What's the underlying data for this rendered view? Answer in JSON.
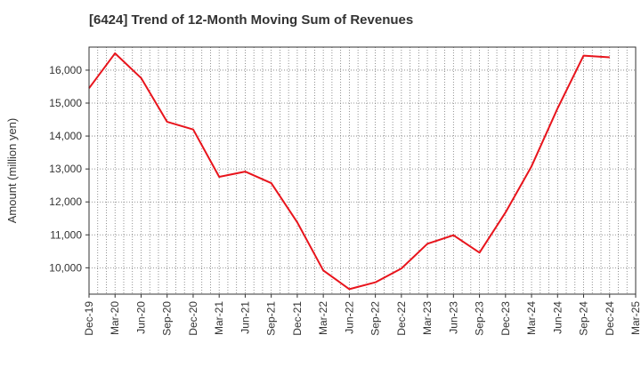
{
  "chart_data": {
    "type": "line",
    "title": "[6424]  Trend of 12-Month Moving Sum of Revenues",
    "ylabel": "Amount (million yen)",
    "xlabel": "",
    "ylim": [
      9200,
      16700
    ],
    "grid": true,
    "x_tick_labels": [
      "Dec-19",
      "Mar-20",
      "Jun-20",
      "Sep-20",
      "Dec-20",
      "Mar-21",
      "Jun-21",
      "Sep-21",
      "Dec-21",
      "Mar-22",
      "Jun-22",
      "Sep-22",
      "Dec-22",
      "Mar-23",
      "Jun-23",
      "Sep-23",
      "Dec-23",
      "Mar-24",
      "Jun-24",
      "Sep-24",
      "Dec-24",
      "Mar-25"
    ],
    "y_ticks": [
      10000,
      11000,
      12000,
      13000,
      14000,
      15000,
      16000
    ],
    "y_tick_labels": [
      "10,000",
      "11,000",
      "12,000",
      "13,000",
      "14,000",
      "15,000",
      "16,000"
    ],
    "series": [
      {
        "color": "#e8141c",
        "x": [
          "Dec-19",
          "Mar-20",
          "Jun-20",
          "Sep-20",
          "Dec-20",
          "Mar-21",
          "Jun-21",
          "Sep-21",
          "Dec-21",
          "Mar-22",
          "Jun-22",
          "Sep-22",
          "Dec-22",
          "Mar-23",
          "Jun-23",
          "Sep-23",
          "Dec-23",
          "Mar-24",
          "Jun-24",
          "Sep-24",
          "Dec-24"
        ],
        "values": [
          15450,
          16510,
          15760,
          14430,
          14200,
          12760,
          12920,
          12570,
          11380,
          9920,
          9350,
          9560,
          9980,
          10730,
          10990,
          10460,
          11680,
          13080,
          14840,
          16440,
          16390
        ]
      }
    ]
  }
}
